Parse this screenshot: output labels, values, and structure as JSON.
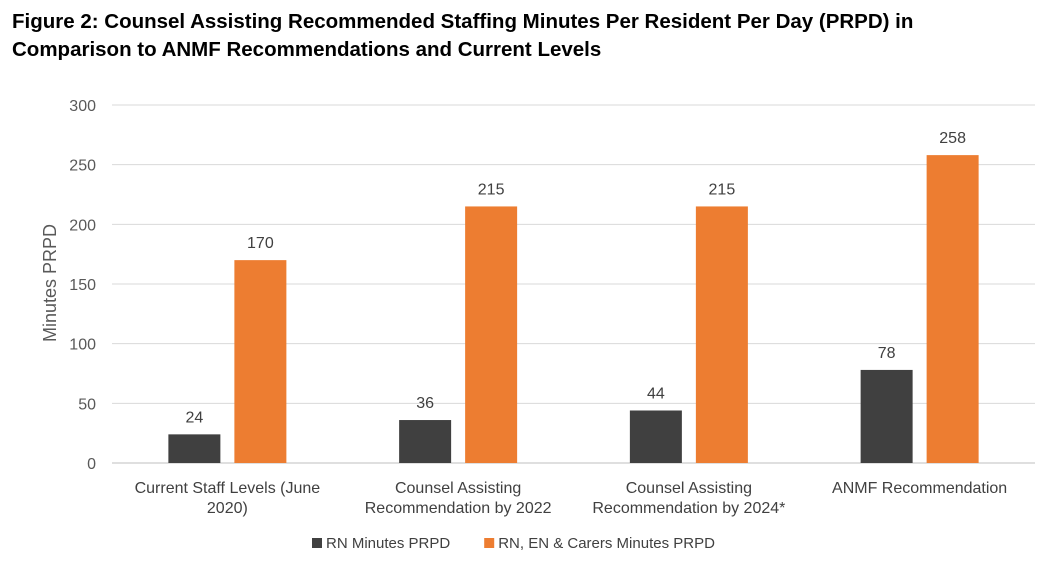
{
  "chart_data": {
    "type": "bar",
    "title": "Figure 2: Counsel Assisting Recommended Staffing Minutes Per Resident Per Day (PRPD) in Comparison to ANMF Recommendations and Current Levels",
    "xlabel": "",
    "ylabel": "Minutes PRPD",
    "ylim": [
      0,
      300
    ],
    "yticks": [
      0,
      50,
      100,
      150,
      200,
      250,
      300
    ],
    "grid": true,
    "legend_position": "bottom",
    "categories": [
      [
        "Current Staff Levels (June",
        "2020)"
      ],
      [
        "Counsel Assisting",
        "Recommendation by 2022"
      ],
      [
        "Counsel Assisting",
        "Recommendation by 2024*"
      ],
      [
        "ANMF Recommendation"
      ]
    ],
    "series": [
      {
        "name": "RN Minutes PRPD",
        "color": "#404040",
        "values": [
          24,
          36,
          44,
          78
        ]
      },
      {
        "name": "RN, EN & Carers Minutes PRPD",
        "color": "#ED7D31",
        "values": [
          170,
          215,
          215,
          258
        ]
      }
    ],
    "colors": {
      "gridline": "#d9d9d9",
      "axis": "#bfbfbf"
    }
  }
}
